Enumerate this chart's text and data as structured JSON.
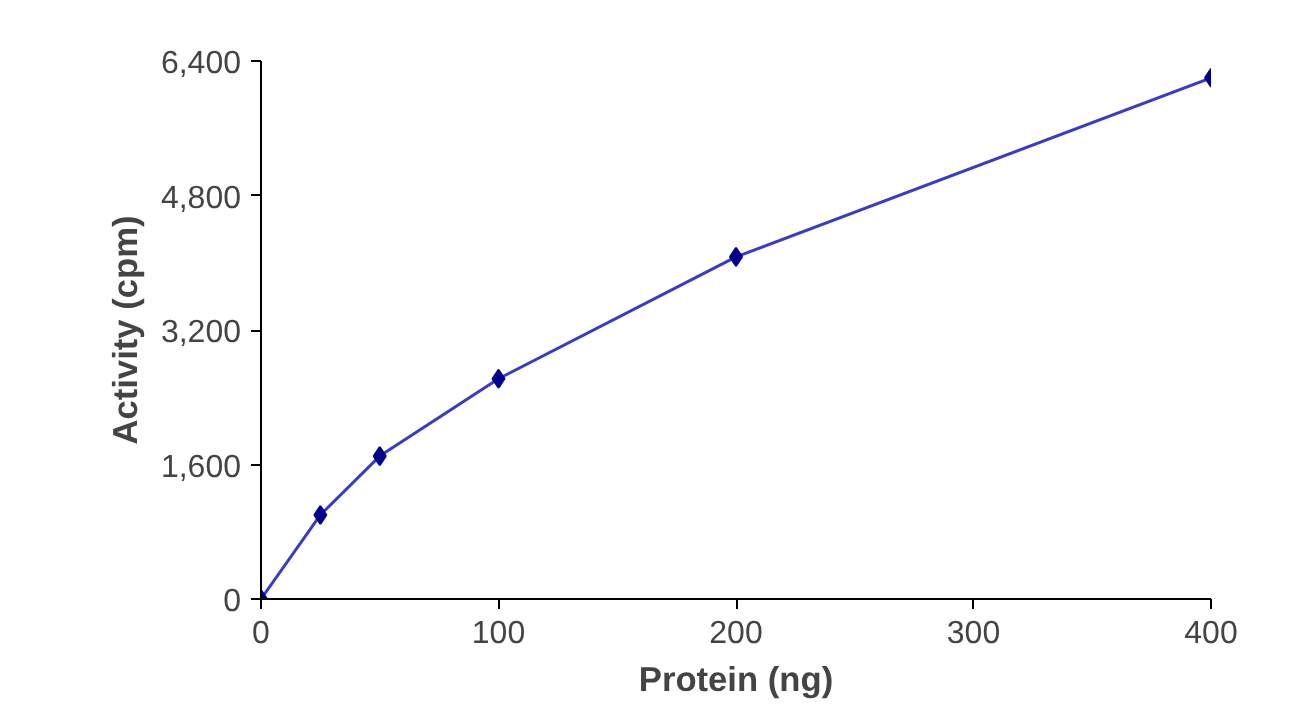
{
  "chart_data": {
    "type": "line",
    "xlabel": "Protein (ng)",
    "ylabel": "Activity (cpm)",
    "x": [
      0,
      25,
      50,
      100,
      200,
      400
    ],
    "series": [
      {
        "color": "#3a3ac8",
        "values": [
          0,
          1000,
          1700,
          2620,
          4070,
          6200
        ]
      }
    ],
    "xlim": [
      0,
      400
    ],
    "xticks": [
      0,
      100,
      200,
      300,
      400
    ],
    "ylim": [
      0,
      6400
    ],
    "yticks": [
      0,
      {
        "value": 1600,
        "label": "1,600"
      },
      {
        "value": 3200,
        "label": "3,200"
      },
      {
        "value": 4800,
        "label": "4,800"
      },
      {
        "value": 6400,
        "label": "6,400"
      }
    ],
    "marker": "diamond",
    "line_style": "solid"
  }
}
